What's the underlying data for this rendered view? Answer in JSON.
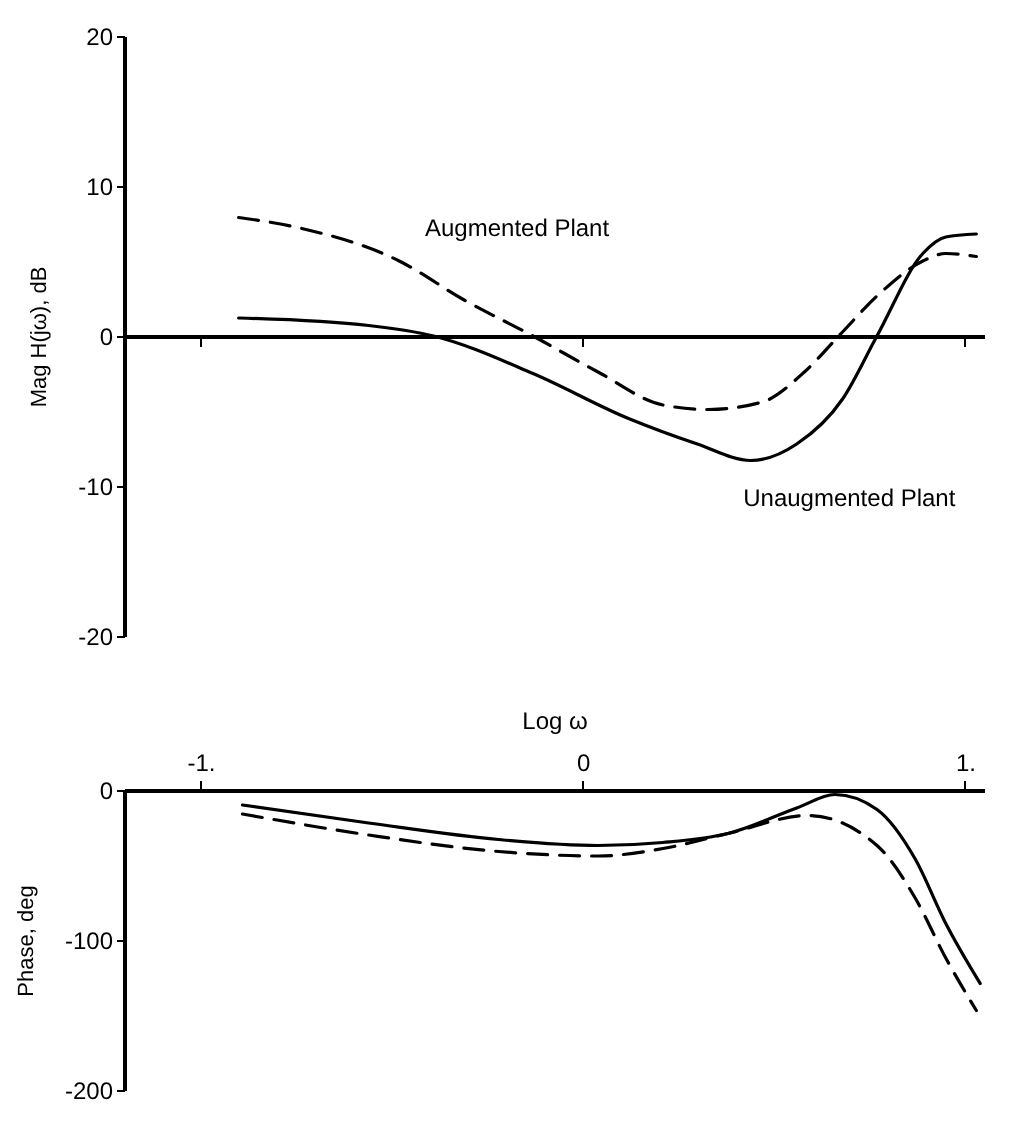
{
  "chart_data": [
    {
      "type": "line",
      "ylabel": "Mag H(jω), dB",
      "xlim": [
        -1.2,
        1.05
      ],
      "xticks": [
        {
          "value": -1,
          "label": null
        },
        {
          "value": 0,
          "label": null
        },
        {
          "value": 1,
          "label": null
        }
      ],
      "ylim": [
        -20,
        20
      ],
      "yticks": [
        -20,
        -10,
        0,
        10,
        20
      ],
      "tick_labels": "y",
      "series": [
        {
          "color": "#000000",
          "line_style": "solid",
          "x": [
            -0.9,
            -0.56,
            -0.39,
            -0.13,
            0.12,
            0.3,
            0.44,
            0.56,
            0.68,
            0.77,
            0.89,
            0.95,
            1.03
          ],
          "values": [
            1.2,
            0.7,
            0,
            -2.5,
            -5.5,
            -7.2,
            -8.3,
            -7.2,
            -4.2,
            0,
            5.5,
            6.6,
            6.8
          ]
        },
        {
          "color": "#000000",
          "line_style": "dashed",
          "x": [
            -0.9,
            -0.74,
            -0.48,
            -0.31,
            -0.13,
            0.04,
            0.21,
            0.33,
            0.47,
            0.58,
            0.67,
            0.78,
            0.89,
            0.95,
            1.03
          ],
          "values": [
            7.9,
            7.2,
            5.0,
            2.4,
            0,
            -2.4,
            -4.6,
            -4.9,
            -4.4,
            -2.4,
            0,
            2.9,
            5.0,
            5.5,
            5.3
          ]
        }
      ],
      "annotations": [
        "Augmented Plant",
        "Unaugmented Plant"
      ]
    },
    {
      "type": "line",
      "xlabel": "Log ω",
      "ylabel": "Phase, deg",
      "xlim": [
        -1.2,
        1.05
      ],
      "xticks": [
        {
          "value": -1,
          "label": "-1."
        },
        0,
        {
          "value": 1,
          "label": "1."
        }
      ],
      "ylim": [
        -200,
        0
      ],
      "yticks": [
        -200,
        -100,
        0
      ],
      "grid": false,
      "series": [
        {
          "color": "#000000",
          "line_style": "solid",
          "x": [
            -0.89,
            -0.56,
            -0.22,
            0.04,
            0.21,
            0.38,
            0.56,
            0.66,
            0.77,
            0.87,
            0.95,
            1.04
          ],
          "values": [
            -10,
            -22,
            -33,
            -37,
            -35,
            -29,
            -12,
            -3,
            -13,
            -46,
            -89,
            -129
          ]
        },
        {
          "color": "#000000",
          "line_style": "dashed",
          "x": [
            -0.89,
            -0.56,
            -0.22,
            0.04,
            0.21,
            0.38,
            0.59,
            0.77,
            0.87,
            0.95,
            1.03
          ],
          "values": [
            -16,
            -30,
            -41,
            -44,
            -39,
            -29,
            -17,
            -37,
            -72,
            -112,
            -147
          ]
        }
      ]
    }
  ]
}
